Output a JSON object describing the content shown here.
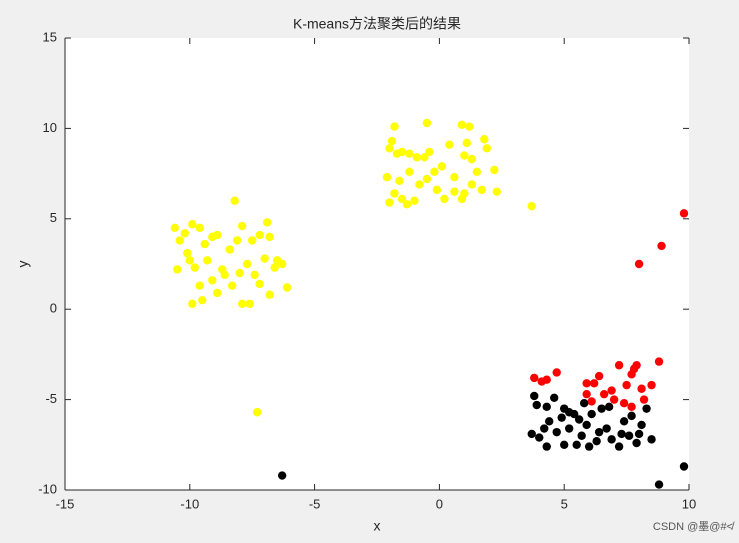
{
  "chart_data": {
    "type": "scatter",
    "title": "K-means方法聚类后的结果",
    "xlabel": "x",
    "ylabel": "y",
    "xlim": [
      -15,
      10
    ],
    "ylim": [
      -10,
      15
    ],
    "xticks": [
      -15,
      -10,
      -5,
      0,
      5,
      10
    ],
    "yticks": [
      -10,
      -5,
      0,
      5,
      10,
      15
    ],
    "series": [
      {
        "color": "#ffff00",
        "x": [
          -10.6,
          -10.4,
          -10.2,
          -9.9,
          -9.6,
          -10.1,
          -9.4,
          -9.1,
          -8.9,
          -9.8,
          -10.5,
          -9.3,
          -8.7,
          -8.4,
          -8.1,
          -7.9,
          -7.5,
          -7.2,
          -6.9,
          -6.8,
          -7.7,
          -7.4,
          -7.0,
          -6.5,
          -6.3,
          -6.1,
          -6.8,
          -7.2,
          -7.6,
          -7.9,
          -8.3,
          -8.9,
          -9.5,
          -9.9,
          -9.6,
          -9.1,
          -8.6,
          -8.2,
          -8.0,
          -7.3,
          -6.6,
          -10.0
        ],
        "values": [
          4.5,
          3.8,
          4.2,
          4.7,
          4.5,
          3.1,
          3.6,
          4.0,
          4.1,
          2.3,
          2.2,
          2.7,
          2.2,
          3.3,
          3.8,
          4.6,
          3.8,
          4.1,
          4.8,
          4.0,
          2.5,
          1.9,
          2.8,
          2.7,
          2.5,
          1.2,
          0.8,
          1.4,
          0.3,
          0.3,
          1.3,
          0.9,
          0.5,
          0.3,
          1.3,
          1.6,
          1.9,
          6.0,
          2.0,
          -5.7,
          2.3,
          2.7
        ]
      },
      {
        "color": "#ffff00",
        "x": [
          -2.0,
          -1.8,
          -1.9,
          -1.5,
          -1.2,
          -0.9,
          -0.5,
          -0.4,
          0.1,
          0.4,
          0.9,
          1.2,
          1.0,
          1.3,
          1.8,
          1.9,
          2.2,
          2.3,
          1.7,
          1.3,
          1.0,
          0.6,
          0.2,
          -0.1,
          -0.5,
          -0.8,
          -1.2,
          -1.5,
          -1.8,
          -2.0,
          -2.1,
          -1.6,
          -1.0,
          -0.2,
          0.6,
          1.5,
          0.9,
          -0.6,
          -1.3,
          3.7,
          1.1,
          -1.7
        ],
        "values": [
          8.9,
          10.1,
          9.3,
          8.7,
          8.6,
          8.4,
          10.3,
          8.7,
          7.9,
          9.1,
          10.2,
          10.1,
          8.5,
          8.3,
          9.4,
          8.9,
          7.7,
          6.5,
          6.6,
          6.9,
          6.4,
          6.5,
          6.1,
          6.6,
          7.2,
          6.9,
          7.6,
          6.1,
          6.4,
          5.9,
          7.3,
          7.1,
          6.0,
          7.6,
          7.3,
          7.6,
          6.1,
          8.4,
          5.8,
          5.7,
          9.2,
          8.6
        ]
      },
      {
        "color": "#ff0000",
        "x": [
          3.8,
          4.1,
          4.3,
          4.7,
          5.9,
          6.2,
          6.4,
          6.9,
          7.2,
          7.5,
          7.8,
          7.9,
          8.1,
          8.2,
          8.8,
          8.5,
          7.0,
          7.4,
          6.6,
          6.1,
          5.9,
          7.7,
          8.0,
          8.9,
          9.8,
          7.7
        ],
        "values": [
          -3.8,
          -4.0,
          -3.9,
          -3.5,
          -4.1,
          -4.1,
          -3.7,
          -4.5,
          -3.1,
          -4.2,
          -3.3,
          -3.1,
          -4.4,
          -5.0,
          -2.9,
          -4.2,
          -5.0,
          -5.2,
          -4.7,
          -5.1,
          -4.7,
          -5.4,
          2.5,
          3.5,
          5.3,
          -3.6
        ]
      },
      {
        "color": "#000000",
        "x": [
          3.8,
          3.9,
          4.3,
          4.6,
          5.0,
          5.2,
          5.4,
          4.4,
          3.7,
          4.0,
          4.3,
          4.7,
          5.0,
          5.2,
          5.5,
          5.7,
          5.9,
          6.1,
          6.3,
          6.5,
          6.7,
          6.9,
          7.2,
          7.4,
          7.6,
          7.9,
          8.1,
          8.3,
          8.5,
          5.6,
          4.9,
          6.0,
          6.8,
          7.7,
          4.2,
          5.8,
          8.0,
          -6.3,
          8.8,
          9.8,
          7.3,
          6.4
        ],
        "values": [
          -4.8,
          -5.3,
          -5.4,
          -4.9,
          -5.5,
          -5.7,
          -5.8,
          -6.2,
          -6.9,
          -7.1,
          -7.6,
          -6.8,
          -7.5,
          -6.6,
          -7.5,
          -7.0,
          -6.4,
          -5.8,
          -7.3,
          -5.5,
          -6.6,
          -7.2,
          -7.6,
          -6.2,
          -7.0,
          -7.4,
          -6.4,
          -5.5,
          -7.2,
          -6.1,
          -6.0,
          -7.6,
          -5.4,
          -5.9,
          -6.6,
          -5.2,
          -6.9,
          -9.2,
          -9.7,
          -8.7,
          -6.9,
          -6.8
        ]
      }
    ]
  },
  "watermark": "CSDN @墨@#≮"
}
